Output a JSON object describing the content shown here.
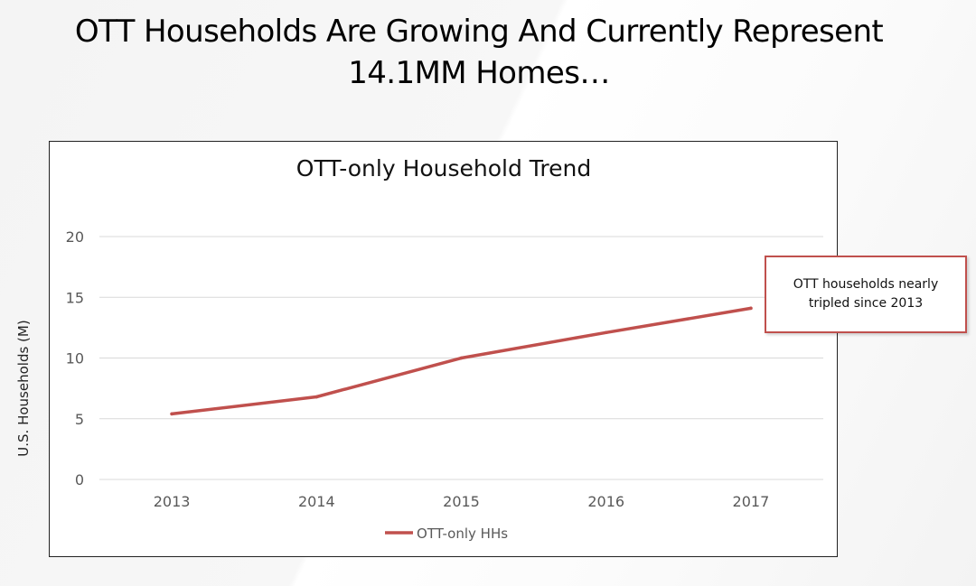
{
  "slide": {
    "title": "OTT Households Are Growing And Currently Represent 14.1MM Homes…"
  },
  "annotation": {
    "text": "OTT households nearly tripled since 2013"
  },
  "colors": {
    "series": "#c0504d",
    "gridline": "#d9d9d9",
    "tick_text": "#595959"
  },
  "chart_data": {
    "type": "line",
    "title": "OTT-only Household Trend",
    "xlabel": "",
    "ylabel": "U.S. Households (M)",
    "categories": [
      "2013",
      "2014",
      "2015",
      "2016",
      "2017"
    ],
    "series": [
      {
        "name": "OTT-only HHs",
        "values": [
          5.4,
          6.8,
          10.0,
          12.1,
          14.1
        ]
      }
    ],
    "ylim": [
      0,
      20
    ],
    "yticks": [
      0,
      5,
      10,
      15,
      20
    ],
    "grid": true,
    "legend": "bottom"
  }
}
